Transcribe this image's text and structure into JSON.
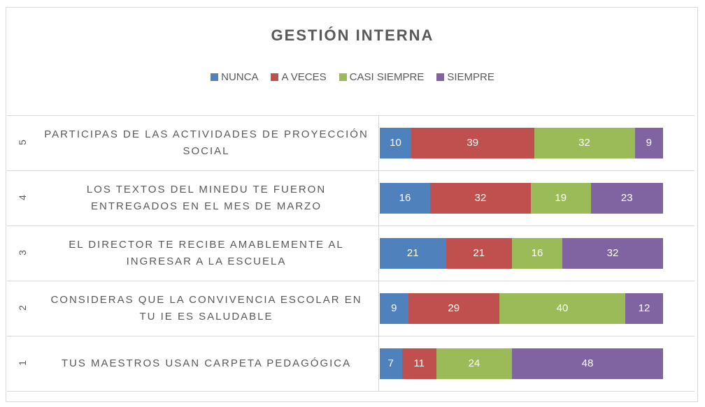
{
  "chart_data": {
    "type": "stacked-bar-horizontal",
    "title": "GESTIÓN INTERNA",
    "row_numbers": [
      5,
      4,
      3,
      2,
      1
    ],
    "categories": [
      "PARTICIPAS DE LAS ACTIVIDADES DE PROYECCIÓN SOCIAL",
      "LOS TEXTOS DEL MINEDU TE FUERON ENTREGADOS EN EL MES DE MARZO",
      "EL DIRECTOR TE RECIBE AMABLEMENTE AL INGRESAR A LA ESCUELA",
      "CONSIDERAS QUE LA CONVIVENCIA ESCOLAR EN TU IE ES SALUDABLE",
      "TUS MAESTROS USAN CARPETA PEDAGÓGICA"
    ],
    "series": [
      {
        "name": "NUNCA",
        "color": "#4f81bd",
        "values": [
          10,
          16,
          21,
          9,
          7
        ]
      },
      {
        "name": "A VECES",
        "color": "#c0504d",
        "values": [
          39,
          32,
          21,
          29,
          11
        ]
      },
      {
        "name": "CASI SIEMPRE",
        "color": "#9bbb59",
        "values": [
          32,
          19,
          16,
          40,
          24
        ]
      },
      {
        "name": "SIEMPRE",
        "color": "#8064a2",
        "values": [
          9,
          23,
          32,
          12,
          48
        ]
      }
    ],
    "legend": "top"
  }
}
